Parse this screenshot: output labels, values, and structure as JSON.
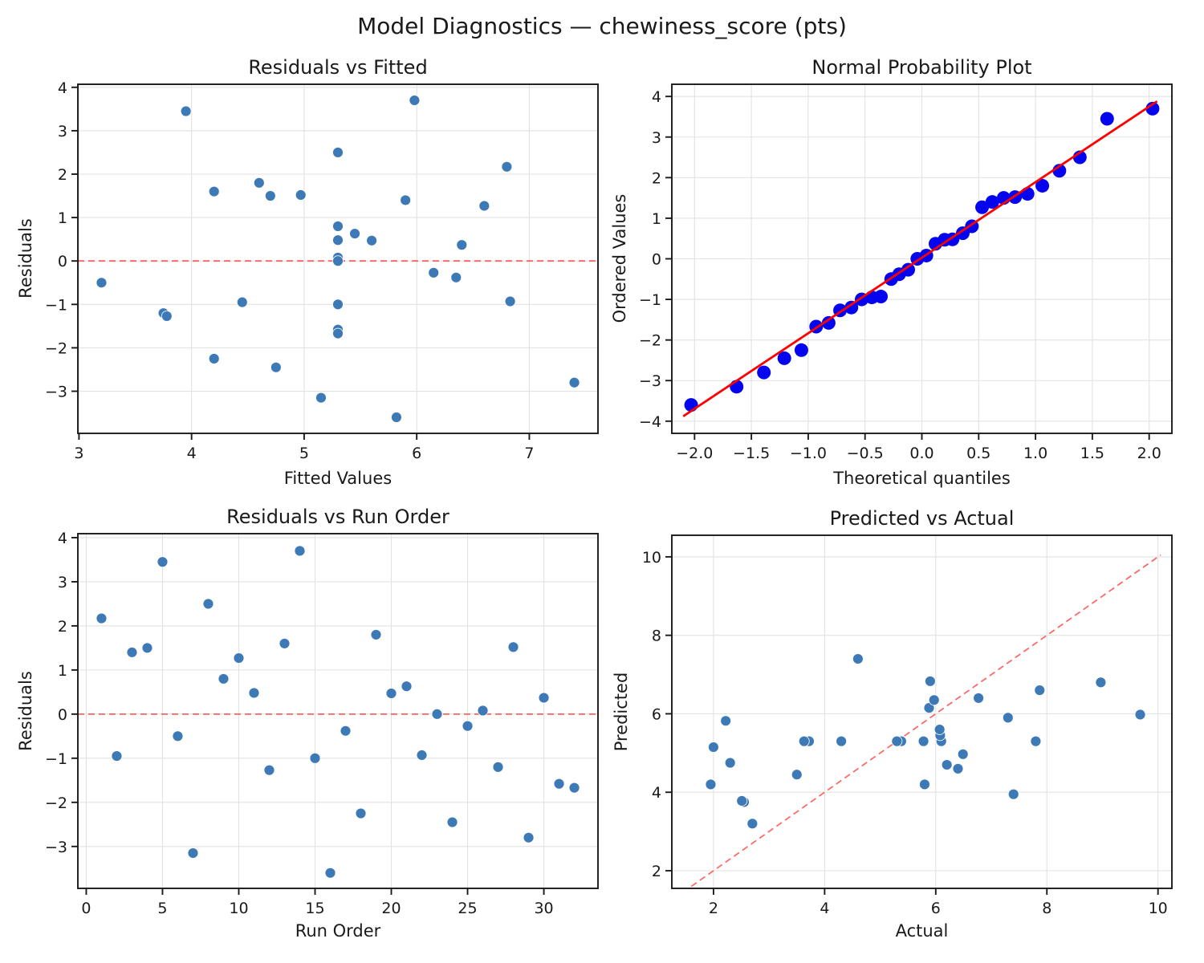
{
  "figure": {
    "title": "Model Diagnostics — chewiness_score (pts)"
  },
  "style": {
    "scatter": "#3d7ab5",
    "qq": "#0404ee",
    "fit": "#ff0000",
    "ref": "#ff4040",
    "grid": "#e2e2e2",
    "spine": "#1a1a1a",
    "text": "#1a1a1a"
  },
  "chart_data": [
    {
      "id": "residuals-vs-fitted",
      "type": "scatter",
      "title": "Residuals vs Fitted",
      "xlabel": "Fitted Values",
      "ylabel": "Residuals",
      "xlim": [
        2.99,
        7.61
      ],
      "ylim": [
        -3.97,
        4.07
      ],
      "grid": true,
      "xticks": [
        {
          "v": 3,
          "l": "3"
        },
        {
          "v": 4,
          "l": "4"
        },
        {
          "v": 5,
          "l": "5"
        },
        {
          "v": 6,
          "l": "6"
        },
        {
          "v": 7,
          "l": "7"
        }
      ],
      "yticks": [
        {
          "v": -3,
          "l": "−3"
        },
        {
          "v": -2,
          "l": "−2"
        },
        {
          "v": -1,
          "l": "−1"
        },
        {
          "v": 0,
          "l": "0"
        },
        {
          "v": 1,
          "l": "1"
        },
        {
          "v": 2,
          "l": "2"
        },
        {
          "v": 3,
          "l": "3"
        },
        {
          "v": 4,
          "l": "4"
        }
      ],
      "marker": {
        "r": 6.5,
        "color": "scatter",
        "edge": "#ffffff"
      },
      "lines": [
        {
          "x1": 2.99,
          "y1": 0,
          "x2": 7.61,
          "y2": 0,
          "style": "dashed",
          "color": "ref",
          "width": 1.8,
          "z": "below"
        }
      ],
      "x": [
        3.2,
        3.75,
        3.78,
        3.95,
        4.2,
        4.2,
        4.45,
        4.6,
        4.7,
        4.75,
        4.97,
        5.15,
        5.3,
        5.3,
        5.3,
        5.3,
        5.3,
        5.3,
        5.3,
        5.3,
        5.45,
        5.6,
        5.82,
        5.9,
        5.98,
        6.15,
        6.35,
        6.4,
        6.6,
        6.8,
        6.83,
        7.4
      ],
      "y": [
        -0.5,
        -1.2,
        -1.27,
        3.45,
        1.6,
        -2.25,
        -0.95,
        1.8,
        1.5,
        -2.45,
        1.52,
        -3.15,
        2.5,
        0.8,
        0.48,
        0.08,
        0.0,
        -1.0,
        -1.58,
        -1.67,
        0.63,
        0.47,
        -3.6,
        1.4,
        3.7,
        -0.27,
        -0.38,
        0.37,
        1.27,
        2.17,
        -0.93,
        -2.8
      ]
    },
    {
      "id": "normal-probability-plot",
      "type": "scatter",
      "title": "Normal Probability Plot",
      "xlabel": "Theoretical quantiles",
      "ylabel": "Ordered Values",
      "xlim": [
        -2.2,
        2.2
      ],
      "ylim": [
        -4.3,
        4.3
      ],
      "grid": true,
      "xticks": [
        {
          "v": -2.0,
          "l": "−2.0"
        },
        {
          "v": -1.5,
          "l": "−1.5"
        },
        {
          "v": -1.0,
          "l": "−1.0"
        },
        {
          "v": -0.5,
          "l": "−0.5"
        },
        {
          "v": 0.0,
          "l": "0.0"
        },
        {
          "v": 0.5,
          "l": "0.5"
        },
        {
          "v": 1.0,
          "l": "1.0"
        },
        {
          "v": 1.5,
          "l": "1.5"
        },
        {
          "v": 2.0,
          "l": "2.0"
        }
      ],
      "yticks": [
        {
          "v": -4,
          "l": "−4"
        },
        {
          "v": -3,
          "l": "−3"
        },
        {
          "v": -2,
          "l": "−2"
        },
        {
          "v": -1,
          "l": "−1"
        },
        {
          "v": 0,
          "l": "0"
        },
        {
          "v": 1,
          "l": "1"
        },
        {
          "v": 2,
          "l": "2"
        },
        {
          "v": 3,
          "l": "3"
        },
        {
          "v": 4,
          "l": "4"
        }
      ],
      "marker": {
        "r": 8.5,
        "color": "qq",
        "edge": null
      },
      "lines": [
        {
          "x1": -2.1,
          "y1": -3.88,
          "x2": 2.07,
          "y2": 3.88,
          "style": "solid",
          "color": "fit",
          "width": 2.8,
          "z": "above"
        }
      ],
      "x": [
        -2.03,
        -1.63,
        -1.39,
        -1.21,
        -1.06,
        -0.93,
        -0.82,
        -0.72,
        -0.62,
        -0.53,
        -0.44,
        -0.36,
        -0.27,
        -0.2,
        -0.12,
        -0.04,
        0.04,
        0.12,
        0.2,
        0.27,
        0.36,
        0.44,
        0.53,
        0.62,
        0.72,
        0.82,
        0.93,
        1.06,
        1.21,
        1.39,
        1.63,
        2.03
      ],
      "y": [
        -3.6,
        -3.15,
        -2.8,
        -2.45,
        -2.25,
        -1.67,
        -1.58,
        -1.27,
        -1.2,
        -1.0,
        -0.95,
        -0.93,
        -0.5,
        -0.38,
        -0.27,
        0.0,
        0.08,
        0.37,
        0.47,
        0.48,
        0.63,
        0.8,
        1.27,
        1.4,
        1.5,
        1.52,
        1.6,
        1.8,
        2.17,
        2.5,
        3.45,
        3.7
      ]
    },
    {
      "id": "residuals-vs-run-order",
      "type": "scatter",
      "title": "Residuals vs Run Order",
      "xlabel": "Run Order",
      "ylabel": "Residuals",
      "xlim": [
        -0.55,
        33.55
      ],
      "ylim": [
        -3.95,
        4.09
      ],
      "grid": true,
      "xticks": [
        {
          "v": 0,
          "l": "0"
        },
        {
          "v": 5,
          "l": "5"
        },
        {
          "v": 10,
          "l": "10"
        },
        {
          "v": 15,
          "l": "15"
        },
        {
          "v": 20,
          "l": "20"
        },
        {
          "v": 25,
          "l": "25"
        },
        {
          "v": 30,
          "l": "30"
        }
      ],
      "yticks": [
        {
          "v": -3,
          "l": "−3"
        },
        {
          "v": -2,
          "l": "−2"
        },
        {
          "v": -1,
          "l": "−1"
        },
        {
          "v": 0,
          "l": "0"
        },
        {
          "v": 1,
          "l": "1"
        },
        {
          "v": 2,
          "l": "2"
        },
        {
          "v": 3,
          "l": "3"
        },
        {
          "v": 4,
          "l": "4"
        }
      ],
      "marker": {
        "r": 6.5,
        "color": "scatter",
        "edge": "#ffffff"
      },
      "lines": [
        {
          "x1": -0.55,
          "y1": 0,
          "x2": 33.55,
          "y2": 0,
          "style": "dashed",
          "color": "ref",
          "width": 1.8,
          "z": "below"
        }
      ],
      "x": [
        1,
        2,
        3,
        4,
        5,
        6,
        7,
        8,
        9,
        10,
        11,
        12,
        13,
        14,
        15,
        16,
        17,
        18,
        19,
        20,
        21,
        22,
        23,
        24,
        25,
        26,
        27,
        28,
        29,
        30,
        31,
        32
      ],
      "y": [
        2.17,
        -0.95,
        1.4,
        1.5,
        3.45,
        -0.5,
        -3.15,
        2.5,
        0.8,
        1.27,
        0.48,
        -1.27,
        1.6,
        3.7,
        -1.0,
        -3.6,
        -0.38,
        -2.25,
        1.8,
        0.47,
        0.63,
        -0.93,
        0.0,
        -2.45,
        -0.27,
        0.08,
        -1.2,
        1.52,
        -2.8,
        0.37,
        -1.58,
        -1.67
      ]
    },
    {
      "id": "predicted-vs-actual",
      "type": "scatter",
      "title": "Predicted vs Actual",
      "xlabel": "Actual",
      "ylabel": "Predicted",
      "xlim": [
        1.25,
        10.25
      ],
      "ylim": [
        1.55,
        10.55
      ],
      "grid": true,
      "xticks": [
        {
          "v": 2,
          "l": "2"
        },
        {
          "v": 4,
          "l": "4"
        },
        {
          "v": 6,
          "l": "6"
        },
        {
          "v": 8,
          "l": "8"
        },
        {
          "v": 10,
          "l": "10"
        }
      ],
      "yticks": [
        {
          "v": 2,
          "l": "2"
        },
        {
          "v": 4,
          "l": "4"
        },
        {
          "v": 6,
          "l": "6"
        },
        {
          "v": 8,
          "l": "8"
        },
        {
          "v": 10,
          "l": "10"
        }
      ],
      "marker": {
        "r": 6.5,
        "color": "scatter",
        "edge": "#ffffff"
      },
      "lines": [
        {
          "x1": 1.6,
          "y1": 1.6,
          "x2": 10.05,
          "y2": 10.05,
          "style": "dashed",
          "color": "ref",
          "width": 1.8,
          "z": "below"
        }
      ],
      "x": [
        2.7,
        2.55,
        2.51,
        7.4,
        5.8,
        1.95,
        3.5,
        6.4,
        6.2,
        2.3,
        6.49,
        2.0,
        7.8,
        6.1,
        5.78,
        5.38,
        5.3,
        4.3,
        3.72,
        3.63,
        6.08,
        6.07,
        2.22,
        7.3,
        9.68,
        5.88,
        5.97,
        6.77,
        7.87,
        8.97,
        5.9,
        4.6
      ],
      "y": [
        3.2,
        3.75,
        3.78,
        3.95,
        4.2,
        4.2,
        4.45,
        4.6,
        4.7,
        4.75,
        4.97,
        5.15,
        5.3,
        5.3,
        5.3,
        5.3,
        5.3,
        5.3,
        5.3,
        5.3,
        5.45,
        5.6,
        5.82,
        5.9,
        5.98,
        6.15,
        6.35,
        6.4,
        6.6,
        6.8,
        6.83,
        7.4
      ]
    }
  ]
}
